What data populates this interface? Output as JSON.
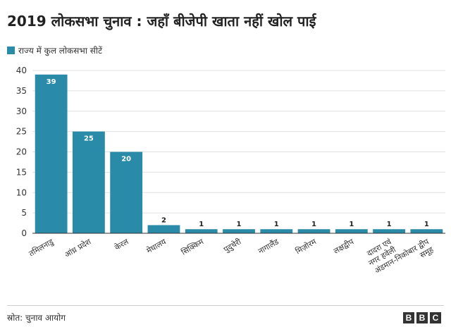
{
  "header": {
    "title": "2019 लोकसभा चुनाव : जहाँ बीजेपी खाता नहीं खोल पाई"
  },
  "footer": {
    "source": "स्रोत: चुनाव आयोग",
    "logo_letters": [
      "B",
      "B",
      "C"
    ]
  },
  "colors": {
    "bar": "#2a8ba8",
    "label_inside": "#ffffff",
    "label_outside": "#222222",
    "grid": "#e0e0e0",
    "axis": "#333333"
  },
  "chart_data": {
    "type": "bar",
    "title": "2019 लोकसभा चुनाव : जहाँ बीजेपी खाता नहीं खोल पाई",
    "xlabel": "",
    "ylabel": "",
    "legend": {
      "position": "top-left"
    },
    "grid": true,
    "ylim": [
      0,
      40
    ],
    "yticks": [
      0,
      5,
      10,
      15,
      20,
      25,
      30,
      35,
      40
    ],
    "categories": [
      "तमिलनाडु",
      "आंध्र प्रदेश",
      "केरल",
      "मेघालय",
      "सिक्किम",
      "पुदुचेरी",
      "नागालैंड",
      "मिज़ोरम",
      "लक्षद्वीप",
      "दादरा एवं नगर हवेली",
      "अंडमान-निकोबार द्वीप समूह"
    ],
    "series": [
      {
        "name": "राज्य में कुल लोकसभा सीटें",
        "values": [
          39,
          25,
          20,
          2,
          1,
          1,
          1,
          1,
          1,
          1,
          1
        ]
      }
    ]
  }
}
